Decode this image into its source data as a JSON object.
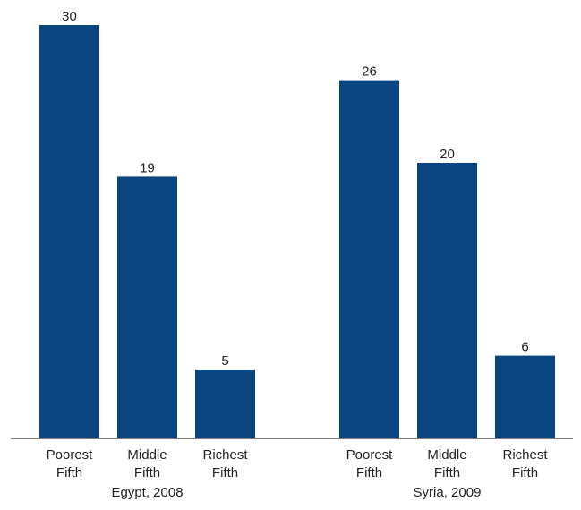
{
  "chart_data": {
    "type": "bar",
    "title": "",
    "xlabel": "",
    "ylabel": "",
    "ylim": [
      0,
      30
    ],
    "grid": false,
    "legend": "none",
    "bar_color": "#0a4580",
    "groups": [
      {
        "label": "Egypt, 2008",
        "categories": [
          [
            "Poorest",
            "Fifth"
          ],
          [
            "Middle",
            "Fifth"
          ],
          [
            "Richest",
            "Fifth"
          ]
        ],
        "values": [
          30,
          19,
          5
        ]
      },
      {
        "label": "Syria, 2009",
        "categories": [
          [
            "Poorest",
            "Fifth"
          ],
          [
            "Middle",
            "Fifth"
          ],
          [
            "Richest",
            "Fifth"
          ]
        ],
        "values": [
          26,
          20,
          6
        ]
      }
    ]
  }
}
